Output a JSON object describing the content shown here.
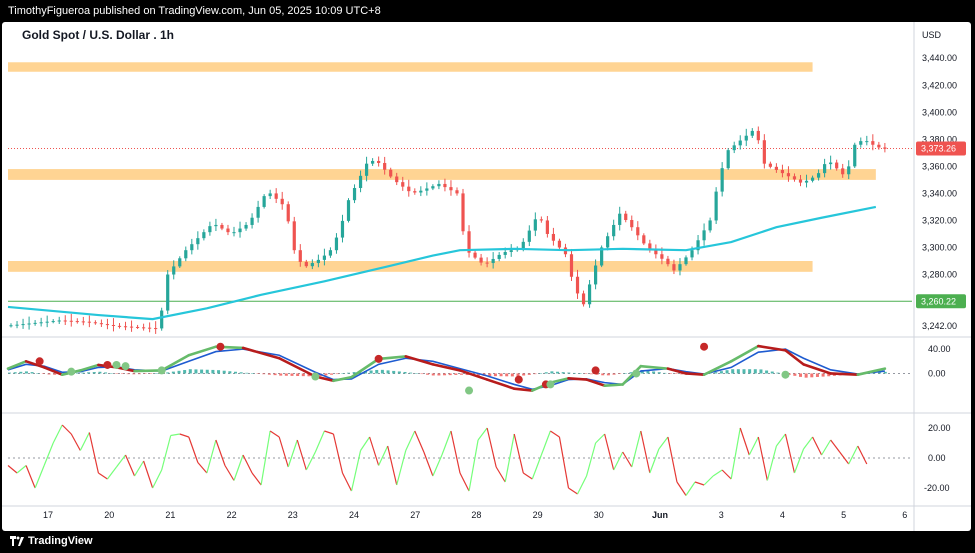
{
  "header": {
    "publisher_line": "TimothyFigueroa published on TradingView.com, Jun 05, 2025 10:09 UTC+8"
  },
  "footer": {
    "brand": "TradingView"
  },
  "colors": {
    "up": "#26a69a",
    "down": "#ef5350",
    "zone": "#ffcc80",
    "ma": "#26c6da",
    "green_line": "#4caf50",
    "osc_green": "#66bb6a",
    "osc_red": "#b71c1c",
    "osc_blue": "#1e5bd0",
    "dot_green": "#81c784",
    "dot_red": "#c62828",
    "rsi_green": "#76ff7a",
    "rsi_red": "#e53935"
  },
  "chart_data": {
    "type": "candlestick",
    "title": "Gold Spot / U.S. Dollar . 1h",
    "currency": "USD",
    "y_ticks": [
      "3,440.00",
      "3,420.00",
      "3,400.00",
      "3,380.00",
      "3,360.00",
      "3,340.00",
      "3,320.00",
      "3,300.00",
      "3,280.00",
      "3,260.00",
      "3,242.00"
    ],
    "ylim": [
      3236,
      3452
    ],
    "x_labels": [
      "17",
      "20",
      "21",
      "22",
      "23",
      "24",
      "27",
      "28",
      "29",
      "30",
      "Jun",
      "3",
      "4",
      "5",
      "6"
    ],
    "price_labels": [
      {
        "value": 3373.26,
        "text": "3,373.26",
        "color": "#ef5350"
      },
      {
        "value": 3260.22,
        "text": "3,260.22",
        "color": "#4caf50"
      }
    ],
    "support_resistance_zones": [
      {
        "low": 3430,
        "high": 3437,
        "from": 0,
        "to": 0.89
      },
      {
        "low": 3350,
        "high": 3358,
        "from": 0,
        "to": 0.96
      },
      {
        "low": 3282,
        "high": 3290,
        "from": 0,
        "to": 0.89
      }
    ],
    "horizontal_line": 3260.22,
    "price_path": [
      [
        0,
        3242
      ],
      [
        0.06,
        3246
      ],
      [
        0.09,
        3245
      ],
      [
        0.12,
        3242
      ],
      [
        0.17,
        3240
      ],
      [
        0.18,
        3280
      ],
      [
        0.2,
        3298
      ],
      [
        0.23,
        3318
      ],
      [
        0.25,
        3310
      ],
      [
        0.27,
        3318
      ],
      [
        0.29,
        3342
      ],
      [
        0.31,
        3330
      ],
      [
        0.32,
        3298
      ],
      [
        0.33,
        3285
      ],
      [
        0.35,
        3292
      ],
      [
        0.36,
        3298
      ],
      [
        0.37,
        3312
      ],
      [
        0.38,
        3335
      ],
      [
        0.4,
        3362
      ],
      [
        0.41,
        3365
      ],
      [
        0.43,
        3350
      ],
      [
        0.45,
        3340
      ],
      [
        0.46,
        3342
      ],
      [
        0.48,
        3347
      ],
      [
        0.5,
        3340
      ],
      [
        0.51,
        3298
      ],
      [
        0.53,
        3287
      ],
      [
        0.55,
        3296
      ],
      [
        0.57,
        3300
      ],
      [
        0.59,
        3325
      ],
      [
        0.6,
        3310
      ],
      [
        0.62,
        3295
      ],
      [
        0.63,
        3270
      ],
      [
        0.64,
        3258
      ],
      [
        0.65,
        3280
      ],
      [
        0.66,
        3300
      ],
      [
        0.68,
        3325
      ],
      [
        0.69,
        3318
      ],
      [
        0.71,
        3300
      ],
      [
        0.73,
        3290
      ],
      [
        0.74,
        3283
      ],
      [
        0.75,
        3290
      ],
      [
        0.76,
        3298
      ],
      [
        0.78,
        3320
      ],
      [
        0.79,
        3352
      ],
      [
        0.8,
        3372
      ],
      [
        0.83,
        3388
      ],
      [
        0.84,
        3362
      ],
      [
        0.86,
        3355
      ],
      [
        0.88,
        3348
      ],
      [
        0.89,
        3350
      ],
      [
        0.9,
        3355
      ],
      [
        0.91,
        3365
      ],
      [
        0.93,
        3352
      ],
      [
        0.94,
        3376
      ],
      [
        0.95,
        3380
      ],
      [
        0.96,
        3376
      ],
      [
        0.97,
        3373
      ]
    ],
    "moving_average_path": [
      [
        0,
        3256
      ],
      [
        0.1,
        3250
      ],
      [
        0.16,
        3247
      ],
      [
        0.22,
        3255
      ],
      [
        0.28,
        3265
      ],
      [
        0.35,
        3275
      ],
      [
        0.42,
        3286
      ],
      [
        0.47,
        3294
      ],
      [
        0.5,
        3298
      ],
      [
        0.56,
        3299
      ],
      [
        0.62,
        3298
      ],
      [
        0.68,
        3299
      ],
      [
        0.75,
        3298
      ],
      [
        0.8,
        3304
      ],
      [
        0.85,
        3315
      ],
      [
        0.9,
        3322
      ],
      [
        0.96,
        3330
      ]
    ],
    "oscillator": {
      "y_ticks": [
        "40.00",
        "0.00"
      ],
      "ylim": [
        -60,
        55
      ],
      "fast_path": [
        [
          0,
          8
        ],
        [
          0.02,
          20
        ],
        [
          0.04,
          10
        ],
        [
          0.06,
          -2
        ],
        [
          0.08,
          5
        ],
        [
          0.1,
          14
        ],
        [
          0.12,
          10
        ],
        [
          0.14,
          4
        ],
        [
          0.17,
          5
        ],
        [
          0.2,
          30
        ],
        [
          0.23,
          44
        ],
        [
          0.26,
          42
        ],
        [
          0.3,
          25
        ],
        [
          0.34,
          -5
        ],
        [
          0.36,
          -12
        ],
        [
          0.38,
          -6
        ],
        [
          0.41,
          24
        ],
        [
          0.44,
          28
        ],
        [
          0.47,
          15
        ],
        [
          0.5,
          5
        ],
        [
          0.53,
          -10
        ],
        [
          0.56,
          -25
        ],
        [
          0.58,
          -28
        ],
        [
          0.6,
          -15
        ],
        [
          0.62,
          -8
        ],
        [
          0.64,
          -10
        ],
        [
          0.66,
          -20
        ],
        [
          0.68,
          -18
        ],
        [
          0.7,
          12
        ],
        [
          0.73,
          8
        ],
        [
          0.75,
          0
        ],
        [
          0.77,
          -2
        ],
        [
          0.8,
          20
        ],
        [
          0.83,
          45
        ],
        [
          0.86,
          38
        ],
        [
          0.88,
          15
        ],
        [
          0.91,
          0
        ],
        [
          0.94,
          -2
        ],
        [
          0.97,
          8
        ]
      ],
      "slow_path": [
        [
          0,
          6
        ],
        [
          0.02,
          15
        ],
        [
          0.04,
          12
        ],
        [
          0.06,
          2
        ],
        [
          0.08,
          3
        ],
        [
          0.1,
          10
        ],
        [
          0.12,
          11
        ],
        [
          0.14,
          6
        ],
        [
          0.17,
          4
        ],
        [
          0.2,
          20
        ],
        [
          0.23,
          36
        ],
        [
          0.26,
          40
        ],
        [
          0.3,
          30
        ],
        [
          0.34,
          2
        ],
        [
          0.36,
          -10
        ],
        [
          0.38,
          -9
        ],
        [
          0.41,
          15
        ],
        [
          0.44,
          25
        ],
        [
          0.47,
          20
        ],
        [
          0.5,
          8
        ],
        [
          0.53,
          -4
        ],
        [
          0.56,
          -18
        ],
        [
          0.58,
          -26
        ],
        [
          0.6,
          -20
        ],
        [
          0.62,
          -10
        ],
        [
          0.64,
          -9
        ],
        [
          0.66,
          -15
        ],
        [
          0.68,
          -18
        ],
        [
          0.7,
          4
        ],
        [
          0.73,
          8
        ],
        [
          0.75,
          3
        ],
        [
          0.77,
          -1
        ],
        [
          0.8,
          10
        ],
        [
          0.83,
          35
        ],
        [
          0.86,
          40
        ],
        [
          0.88,
          25
        ],
        [
          0.91,
          6
        ],
        [
          0.94,
          -1
        ],
        [
          0.97,
          4
        ]
      ],
      "dots": [
        {
          "x": 0.035,
          "y": 20,
          "color": "red"
        },
        {
          "x": 0.07,
          "y": 3,
          "color": "green"
        },
        {
          "x": 0.11,
          "y": 14,
          "color": "red"
        },
        {
          "x": 0.12,
          "y": 14,
          "color": "green"
        },
        {
          "x": 0.13,
          "y": 12,
          "color": "green"
        },
        {
          "x": 0.17,
          "y": 5,
          "color": "green"
        },
        {
          "x": 0.235,
          "y": 44,
          "color": "red"
        },
        {
          "x": 0.34,
          "y": -5,
          "color": "green"
        },
        {
          "x": 0.41,
          "y": 24,
          "color": "red"
        },
        {
          "x": 0.51,
          "y": -28,
          "color": "green"
        },
        {
          "x": 0.565,
          "y": -10,
          "color": "red"
        },
        {
          "x": 0.595,
          "y": -18,
          "color": "red"
        },
        {
          "x": 0.6,
          "y": -18,
          "color": "green"
        },
        {
          "x": 0.65,
          "y": 5,
          "color": "red"
        },
        {
          "x": 0.695,
          "y": 0,
          "color": "green"
        },
        {
          "x": 0.77,
          "y": 44,
          "color": "red"
        },
        {
          "x": 0.86,
          "y": -2,
          "color": "green"
        }
      ]
    },
    "rsi_panel": {
      "y_ticks": [
        "20.00",
        "0.00",
        "-20.00"
      ],
      "ylim": [
        -28,
        28
      ],
      "path": [
        [
          0,
          -5
        ],
        [
          0.01,
          -10
        ],
        [
          0.02,
          -5
        ],
        [
          0.03,
          -20
        ],
        [
          0.04,
          -5
        ],
        [
          0.05,
          10
        ],
        [
          0.06,
          22
        ],
        [
          0.07,
          16
        ],
        [
          0.08,
          5
        ],
        [
          0.09,
          17
        ],
        [
          0.1,
          -10
        ],
        [
          0.11,
          -14
        ],
        [
          0.12,
          -6
        ],
        [
          0.13,
          2
        ],
        [
          0.14,
          -12
        ],
        [
          0.15,
          -2
        ],
        [
          0.16,
          -20
        ],
        [
          0.17,
          -8
        ],
        [
          0.18,
          15
        ],
        [
          0.19,
          16
        ],
        [
          0.2,
          14
        ],
        [
          0.21,
          -3
        ],
        [
          0.22,
          -10
        ],
        [
          0.23,
          12
        ],
        [
          0.24,
          -5
        ],
        [
          0.25,
          -15
        ],
        [
          0.26,
          2
        ],
        [
          0.27,
          -10
        ],
        [
          0.28,
          -18
        ],
        [
          0.29,
          18
        ],
        [
          0.3,
          14
        ],
        [
          0.31,
          -6
        ],
        [
          0.32,
          12
        ],
        [
          0.33,
          -8
        ],
        [
          0.34,
          4
        ],
        [
          0.35,
          18
        ],
        [
          0.36,
          16
        ],
        [
          0.37,
          -10
        ],
        [
          0.38,
          -22
        ],
        [
          0.39,
          5
        ],
        [
          0.4,
          14
        ],
        [
          0.41,
          -5
        ],
        [
          0.42,
          8
        ],
        [
          0.43,
          -18
        ],
        [
          0.44,
          5
        ],
        [
          0.45,
          18
        ],
        [
          0.46,
          4
        ],
        [
          0.47,
          -12
        ],
        [
          0.48,
          2
        ],
        [
          0.49,
          18
        ],
        [
          0.5,
          -10
        ],
        [
          0.51,
          -22
        ],
        [
          0.52,
          12
        ],
        [
          0.53,
          20
        ],
        [
          0.54,
          -6
        ],
        [
          0.55,
          -16
        ],
        [
          0.56,
          16
        ],
        [
          0.57,
          -10
        ],
        [
          0.58,
          -14
        ],
        [
          0.59,
          2
        ],
        [
          0.6,
          18
        ],
        [
          0.61,
          14
        ],
        [
          0.62,
          -20
        ],
        [
          0.63,
          -24
        ],
        [
          0.64,
          -12
        ],
        [
          0.65,
          10
        ],
        [
          0.66,
          16
        ],
        [
          0.67,
          -8
        ],
        [
          0.68,
          4
        ],
        [
          0.69,
          -6
        ],
        [
          0.7,
          18
        ],
        [
          0.71,
          -10
        ],
        [
          0.72,
          6
        ],
        [
          0.73,
          14
        ],
        [
          0.74,
          -16
        ],
        [
          0.75,
          -25
        ],
        [
          0.76,
          -16
        ],
        [
          0.77,
          -18
        ],
        [
          0.78,
          -12
        ],
        [
          0.79,
          -8
        ],
        [
          0.8,
          -14
        ],
        [
          0.81,
          20
        ],
        [
          0.82,
          2
        ],
        [
          0.83,
          14
        ],
        [
          0.84,
          -15
        ],
        [
          0.85,
          8
        ],
        [
          0.86,
          16
        ],
        [
          0.87,
          -10
        ],
        [
          0.88,
          6
        ],
        [
          0.89,
          14
        ],
        [
          0.9,
          2
        ],
        [
          0.91,
          12
        ],
        [
          0.92,
          4
        ],
        [
          0.93,
          -4
        ],
        [
          0.94,
          8
        ],
        [
          0.95,
          -4
        ]
      ]
    }
  }
}
